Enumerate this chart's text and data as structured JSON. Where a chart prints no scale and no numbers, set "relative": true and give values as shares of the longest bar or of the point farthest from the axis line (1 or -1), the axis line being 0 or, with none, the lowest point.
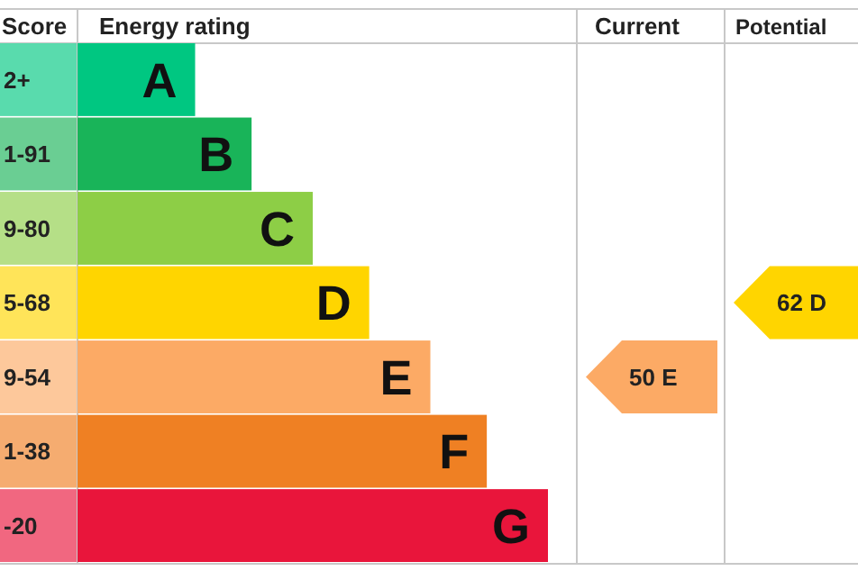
{
  "chart_data": {
    "type": "bar",
    "orientation": "horizontal",
    "relative": true,
    "title": "Energy rating",
    "ylabel": "Score",
    "categories": [
      "A",
      "B",
      "C",
      "D",
      "E",
      "F",
      "G"
    ],
    "values": [
      0.25,
      0.37,
      0.5,
      0.62,
      0.75,
      0.87,
      1
    ],
    "colors": [
      "#00c781",
      "#19b459",
      "#8dce46",
      "#ffd500",
      "#fcaa65",
      "#ef8023",
      "#e9153b"
    ],
    "annotations": [
      "Current",
      "Potential",
      "2+",
      "1-91",
      "9-80",
      "5-68",
      "9-54",
      "1-38",
      "-20",
      "50 E",
      "62 D"
    ]
  }
}
